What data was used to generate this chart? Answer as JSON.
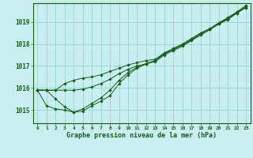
{
  "title": "Graphe pression niveau de la mer (hPa)",
  "background_color": "#c8eef0",
  "grid_color": "#8ecece",
  "line_color": "#1a5c1a",
  "xlim": [
    -0.5,
    23.5
  ],
  "ylim": [
    1014.4,
    1019.85
  ],
  "xticks": [
    0,
    1,
    2,
    3,
    4,
    5,
    6,
    7,
    8,
    9,
    10,
    11,
    12,
    13,
    14,
    15,
    16,
    17,
    18,
    19,
    20,
    21,
    22,
    23
  ],
  "yticks": [
    1015,
    1016,
    1017,
    1018,
    1019
  ],
  "series": [
    [
      1015.9,
      1015.9,
      1015.9,
      1015.9,
      1015.9,
      1015.95,
      1016.05,
      1016.2,
      1016.4,
      1016.65,
      1016.85,
      1017.0,
      1017.1,
      1017.25,
      1017.55,
      1017.75,
      1017.95,
      1018.2,
      1018.45,
      1018.65,
      1018.95,
      1019.15,
      1019.45,
      1019.75
    ],
    [
      1015.9,
      1015.9,
      1015.5,
      1015.15,
      1014.9,
      1015.05,
      1015.3,
      1015.55,
      1015.9,
      1016.35,
      1016.7,
      1016.95,
      1017.1,
      1017.25,
      1017.55,
      1017.75,
      1017.95,
      1018.2,
      1018.45,
      1018.65,
      1018.9,
      1019.1,
      1019.4,
      1019.65
    ],
    [
      1015.9,
      1015.2,
      1015.05,
      1015.0,
      1014.9,
      1014.95,
      1015.2,
      1015.4,
      1015.65,
      1016.2,
      1016.6,
      1016.9,
      1017.1,
      1017.2,
      1017.5,
      1017.7,
      1017.9,
      1018.15,
      1018.4,
      1018.65,
      1018.9,
      1019.15,
      1019.4,
      1019.7
    ],
    [
      1015.9,
      1015.9,
      1015.9,
      1016.2,
      1016.35,
      1016.45,
      1016.5,
      1016.6,
      1016.75,
      1016.9,
      1017.05,
      1017.15,
      1017.25,
      1017.3,
      1017.6,
      1017.8,
      1018.0,
      1018.25,
      1018.5,
      1018.7,
      1018.95,
      1019.2,
      1019.45,
      1019.65
    ]
  ]
}
